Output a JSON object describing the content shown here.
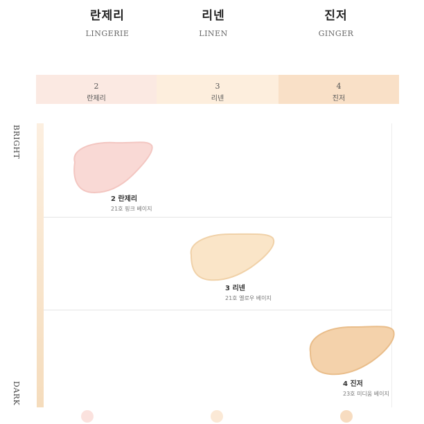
{
  "shades": [
    {
      "ko": "란제리",
      "en": "LINGERIE",
      "num": "2",
      "band_name": "란제리",
      "label": "2 란제리",
      "sub": "21호 핑크 베이지",
      "band_color": "#fbe9e2",
      "swatch_color": "#f9d9d5",
      "swatch_edge": "#f3c6c1",
      "dot_color": "#fbe2de"
    },
    {
      "ko": "리넨",
      "en": "LINEN",
      "num": "3",
      "band_name": "리넨",
      "label": "3 리넨",
      "sub": "21호 옐로우 베이지",
      "band_color": "#fdeedd",
      "swatch_color": "#fae5c8",
      "swatch_edge": "#f0d1a8",
      "dot_color": "#fbe9d6"
    },
    {
      "ko": "진저",
      "en": "GINGER",
      "num": "4",
      "band_name": "진저",
      "label": "4 진저",
      "sub": "23호 미디움 베이지",
      "band_color": "#f9e0c7",
      "swatch_color": "#f4d2ab",
      "swatch_edge": "#e9bd8a",
      "dot_color": "#f7dcc0"
    }
  ],
  "axis": {
    "top": "BRIGHT",
    "bottom": "DARK"
  }
}
